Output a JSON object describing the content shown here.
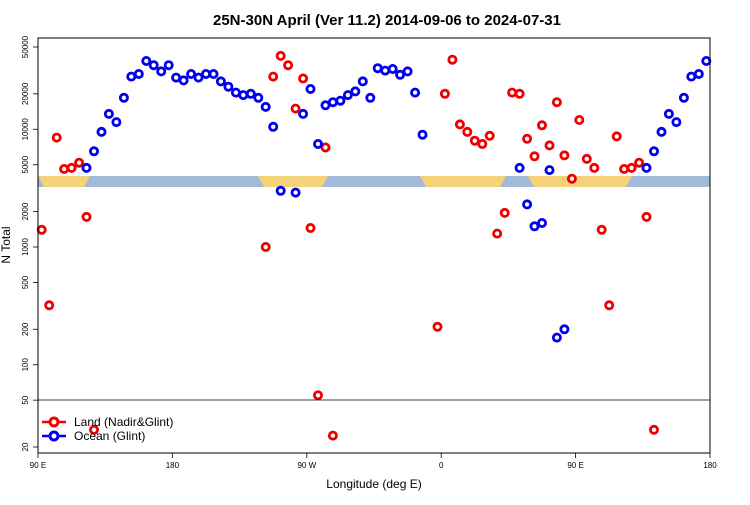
{
  "chart_data": {
    "type": "scatter",
    "title": "25N-30N April (Ver 11.2)   2014-09-06 to 2024-07-31",
    "xlabel": "Longitude (deg E)",
    "ylabel": "N Total",
    "y_scale": "log",
    "x_ticks": [
      {
        "value": 90,
        "label": "90 E"
      },
      {
        "value": 180,
        "label": "180"
      },
      {
        "value": 270,
        "label": "90 W"
      },
      {
        "value": 360,
        "label": "0"
      },
      {
        "value": 450,
        "label": "90 E"
      },
      {
        "value": 540,
        "label": "180"
      }
    ],
    "y_ticks": [
      20,
      50,
      100,
      200,
      500,
      1000,
      2000,
      5000,
      10000,
      20000,
      50000
    ],
    "y_tick_labels": [
      "20",
      "50",
      "100",
      "200",
      "500",
      "1000",
      "2000",
      "5000",
      "10000",
      "20000",
      "50000"
    ],
    "legend": {
      "position": "bottom-left",
      "entries": [
        {
          "label": "Land (Nadir&Glint)",
          "color": "#ee0000"
        },
        {
          "label": "Ocean (Glint)",
          "color": "#0000ee"
        }
      ]
    },
    "series": [
      {
        "name": "Land (Nadir&Glint)",
        "color": "#ee0000",
        "points": [
          [
            92.5,
            1400
          ],
          [
            97.5,
            320
          ],
          [
            102.5,
            8500
          ],
          [
            107.5,
            4600
          ],
          [
            112.5,
            4700
          ],
          [
            117.5,
            5200
          ],
          [
            122.5,
            1800
          ],
          [
            127.5,
            28
          ],
          [
            242.5,
            1000
          ],
          [
            247.5,
            28000
          ],
          [
            252.5,
            42000
          ],
          [
            257.5,
            35000
          ],
          [
            262.5,
            15000
          ],
          [
            267.5,
            27000
          ],
          [
            272.5,
            1450
          ],
          [
            277.5,
            55
          ],
          [
            282.5,
            7000
          ],
          [
            287.5,
            25
          ],
          [
            357.5,
            210
          ],
          [
            362.5,
            20000
          ],
          [
            367.5,
            39000
          ],
          [
            372.5,
            11000
          ],
          [
            377.5,
            9500
          ],
          [
            382.5,
            8000
          ],
          [
            387.5,
            7500
          ],
          [
            392.5,
            8800
          ],
          [
            397.5,
            1300
          ],
          [
            402.5,
            1950
          ],
          [
            407.5,
            20500
          ],
          [
            412.5,
            20000
          ],
          [
            417.5,
            8300
          ],
          [
            422.5,
            5900
          ],
          [
            427.5,
            10800
          ],
          [
            432.5,
            7300
          ],
          [
            437.5,
            17000
          ],
          [
            442.5,
            6000
          ],
          [
            447.5,
            3800
          ],
          [
            452.5,
            12000
          ],
          [
            457.5,
            5600
          ],
          [
            462.5,
            4700
          ],
          [
            467.5,
            1400
          ],
          [
            472.5,
            320
          ],
          [
            477.5,
            8700
          ],
          [
            482.5,
            4600
          ],
          [
            487.5,
            4700
          ],
          [
            492.5,
            5200
          ],
          [
            497.5,
            1800
          ],
          [
            502.5,
            28
          ]
        ]
      },
      {
        "name": "Ocean (Glint)",
        "color": "#0000ee",
        "points": [
          [
            122.5,
            4700
          ],
          [
            127.5,
            6500
          ],
          [
            132.5,
            9500
          ],
          [
            137.5,
            13500
          ],
          [
            142.5,
            11500
          ],
          [
            147.5,
            18500
          ],
          [
            152.5,
            28000
          ],
          [
            157.5,
            29500
          ],
          [
            162.5,
            38000
          ],
          [
            167.5,
            35000
          ],
          [
            172.5,
            31000
          ],
          [
            177.5,
            35000
          ],
          [
            182.5,
            27500
          ],
          [
            187.5,
            26000
          ],
          [
            192.5,
            29500
          ],
          [
            197.5,
            27500
          ],
          [
            202.5,
            29500
          ],
          [
            207.5,
            29500
          ],
          [
            212.5,
            25500
          ],
          [
            217.5,
            23000
          ],
          [
            222.5,
            20500
          ],
          [
            227.5,
            19500
          ],
          [
            232.5,
            20000
          ],
          [
            237.5,
            18500
          ],
          [
            242.5,
            15500
          ],
          [
            247.5,
            10500
          ],
          [
            252.5,
            3000
          ],
          [
            262.5,
            2900
          ],
          [
            267.5,
            13500
          ],
          [
            272.5,
            22000
          ],
          [
            277.5,
            7500
          ],
          [
            282.5,
            16000
          ],
          [
            287.5,
            17000
          ],
          [
            292.5,
            17500
          ],
          [
            297.5,
            19500
          ],
          [
            302.5,
            21000
          ],
          [
            307.5,
            25500
          ],
          [
            312.5,
            18500
          ],
          [
            317.5,
            33000
          ],
          [
            322.5,
            31500
          ],
          [
            327.5,
            32500
          ],
          [
            332.5,
            29000
          ],
          [
            337.5,
            31000
          ],
          [
            342.5,
            20500
          ],
          [
            347.5,
            9000
          ],
          [
            412.5,
            4700
          ],
          [
            417.5,
            2300
          ],
          [
            422.5,
            1500
          ],
          [
            427.5,
            1600
          ],
          [
            432.5,
            4500
          ],
          [
            437.5,
            170
          ],
          [
            442.5,
            200
          ],
          [
            497.5,
            4700
          ],
          [
            502.5,
            6500
          ],
          [
            507.5,
            9500
          ],
          [
            512.5,
            13500
          ],
          [
            517.5,
            11500
          ],
          [
            522.5,
            18500
          ],
          [
            527.5,
            28000
          ],
          [
            532.5,
            29500
          ],
          [
            537.5,
            38000
          ]
        ]
      }
    ]
  }
}
